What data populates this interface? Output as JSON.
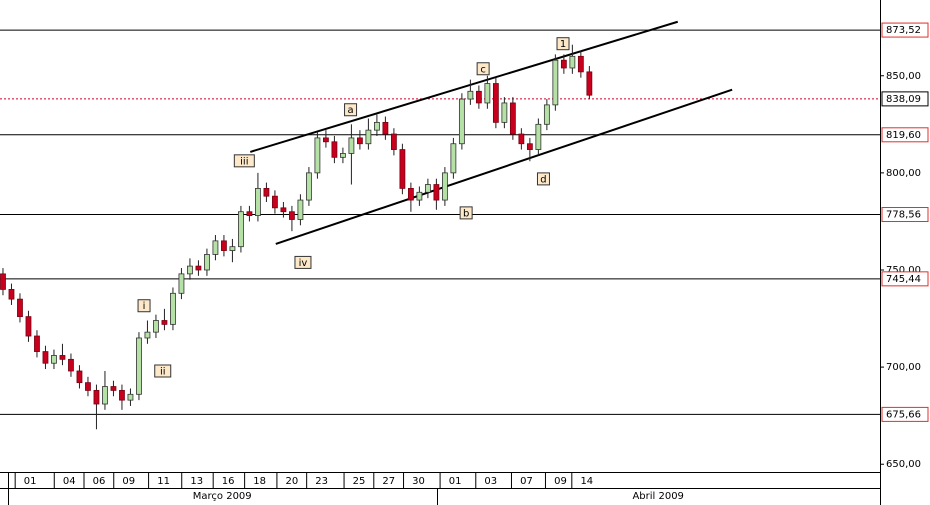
{
  "chart_data": {
    "type": "candlestick",
    "xlim": [
      -0.35,
      103.2
    ],
    "ylim": [
      646,
      889
    ],
    "yticks": [
      {
        "value": 650,
        "label": "650,00"
      },
      {
        "value": 700,
        "label": "700,00"
      },
      {
        "value": 750,
        "label": "750,00"
      },
      {
        "value": 800,
        "label": "800,00"
      },
      {
        "value": 850,
        "label": "850,00"
      }
    ],
    "xticks": [
      {
        "value": 3.2,
        "label": "01"
      },
      {
        "value": 7.8,
        "label": "04"
      },
      {
        "value": 11.3,
        "label": "06"
      },
      {
        "value": 14.8,
        "label": "09"
      },
      {
        "value": 18.9,
        "label": "11"
      },
      {
        "value": 22.8,
        "label": "13"
      },
      {
        "value": 26.5,
        "label": "16"
      },
      {
        "value": 30.2,
        "label": "18"
      },
      {
        "value": 34,
        "label": "20"
      },
      {
        "value": 37.5,
        "label": "23"
      },
      {
        "value": 41.9,
        "label": "25"
      },
      {
        "value": 45.4,
        "label": "27"
      },
      {
        "value": 48.9,
        "label": "30"
      },
      {
        "value": 53.2,
        "label": "01"
      },
      {
        "value": 57.4,
        "label": "03"
      },
      {
        "value": 61.6,
        "label": "07"
      },
      {
        "value": 65.6,
        "label": "09"
      },
      {
        "value": 68.7,
        "label": "14"
      }
    ],
    "month_labels": [
      {
        "value": 25.8,
        "label": "Março 2009"
      },
      {
        "value": 77.1,
        "label": "Abril 2009"
      }
    ],
    "up_color": "#b5e0a6",
    "down_color": "#c8001e",
    "open": [
      748,
      740,
      735,
      726,
      716,
      708,
      702,
      706,
      704,
      698,
      692,
      688,
      681,
      690,
      688,
      683,
      686,
      715,
      718,
      724,
      722,
      738,
      748,
      752,
      750,
      758,
      765,
      760,
      762,
      780,
      778,
      792,
      788,
      782,
      780,
      776,
      786,
      800,
      818,
      816,
      808,
      810,
      818,
      815,
      822,
      826,
      820,
      812,
      792,
      786,
      790,
      794,
      786,
      800,
      815,
      838,
      842,
      836,
      846,
      826,
      836,
      820,
      815,
      812,
      825,
      835,
      858,
      854,
      860,
      852
    ],
    "high": [
      751,
      743,
      738,
      729,
      719,
      711,
      709,
      712,
      707,
      701,
      695,
      691,
      698,
      693,
      691,
      689,
      718,
      724,
      727,
      730,
      741,
      751,
      756,
      755,
      761,
      768,
      768,
      766,
      783,
      783,
      800,
      795,
      791,
      785,
      783,
      789,
      803,
      821,
      822,
      819,
      813,
      825,
      822,
      828,
      830,
      829,
      823,
      815,
      795,
      793,
      797,
      797,
      803,
      818,
      841,
      848,
      845,
      850,
      849,
      839,
      839,
      823,
      818,
      828,
      838,
      861,
      861,
      866,
      863,
      855
    ],
    "low": [
      737,
      732,
      723,
      713,
      705,
      699,
      699,
      701,
      695,
      689,
      685,
      668,
      678,
      685,
      678,
      680,
      683,
      712,
      715,
      719,
      719,
      735,
      745,
      747,
      747,
      755,
      757,
      754,
      759,
      775,
      775,
      785,
      779,
      777,
      770,
      773,
      783,
      797,
      813,
      805,
      805,
      794,
      812,
      812,
      819,
      817,
      809,
      789,
      780,
      783,
      787,
      781,
      783,
      797,
      812,
      835,
      833,
      833,
      823,
      823,
      817,
      812,
      806,
      809,
      822,
      832,
      851,
      851,
      849,
      838
    ],
    "close": [
      740,
      735,
      726,
      716,
      708,
      702,
      706,
      704,
      698,
      692,
      688,
      681,
      690,
      688,
      683,
      686,
      715,
      718,
      724,
      722,
      738,
      748,
      752,
      750,
      758,
      765,
      760,
      762,
      780,
      778,
      792,
      788,
      782,
      780,
      776,
      786,
      800,
      818,
      816,
      808,
      810,
      818,
      815,
      822,
      826,
      820,
      812,
      792,
      786,
      790,
      794,
      786,
      800,
      815,
      838,
      842,
      836,
      846,
      826,
      836,
      820,
      815,
      812,
      825,
      835,
      858,
      854,
      860,
      852,
      840
    ],
    "levels": [
      {
        "value": 873.52,
        "label": "873,52"
      },
      {
        "value": 819.6,
        "label": "819,60"
      },
      {
        "value": 778.56,
        "label": "778,56"
      },
      {
        "value": 745.44,
        "label": "745,44"
      },
      {
        "value": 675.66,
        "label": "675,66"
      }
    ],
    "last_price": {
      "value": 838.09,
      "label": "838,09"
    },
    "trendlines": [
      {
        "x": [
          29.1,
          79.4
        ],
        "y": [
          810.8,
          877.8
        ]
      },
      {
        "x": [
          32.1,
          85.8
        ],
        "y": [
          763.4,
          842.8
        ]
      }
    ],
    "annotations": [
      {
        "text": "iii",
        "x": 28.4,
        "y": 806.2
      },
      {
        "text": "a",
        "x": 40.9,
        "y": 832.5
      },
      {
        "text": "c",
        "x": 56.5,
        "y": 853.6
      },
      {
        "text": "1",
        "x": 65.9,
        "y": 866.5
      },
      {
        "text": "b",
        "x": 54.5,
        "y": 779.4
      },
      {
        "text": "d",
        "x": 63.6,
        "y": 796.9
      },
      {
        "text": "iv",
        "x": 35.3,
        "y": 753.9
      },
      {
        "text": "i",
        "x": 16.6,
        "y": 731.6
      },
      {
        "text": "ii",
        "x": 18.8,
        "y": 698.0
      }
    ]
  }
}
